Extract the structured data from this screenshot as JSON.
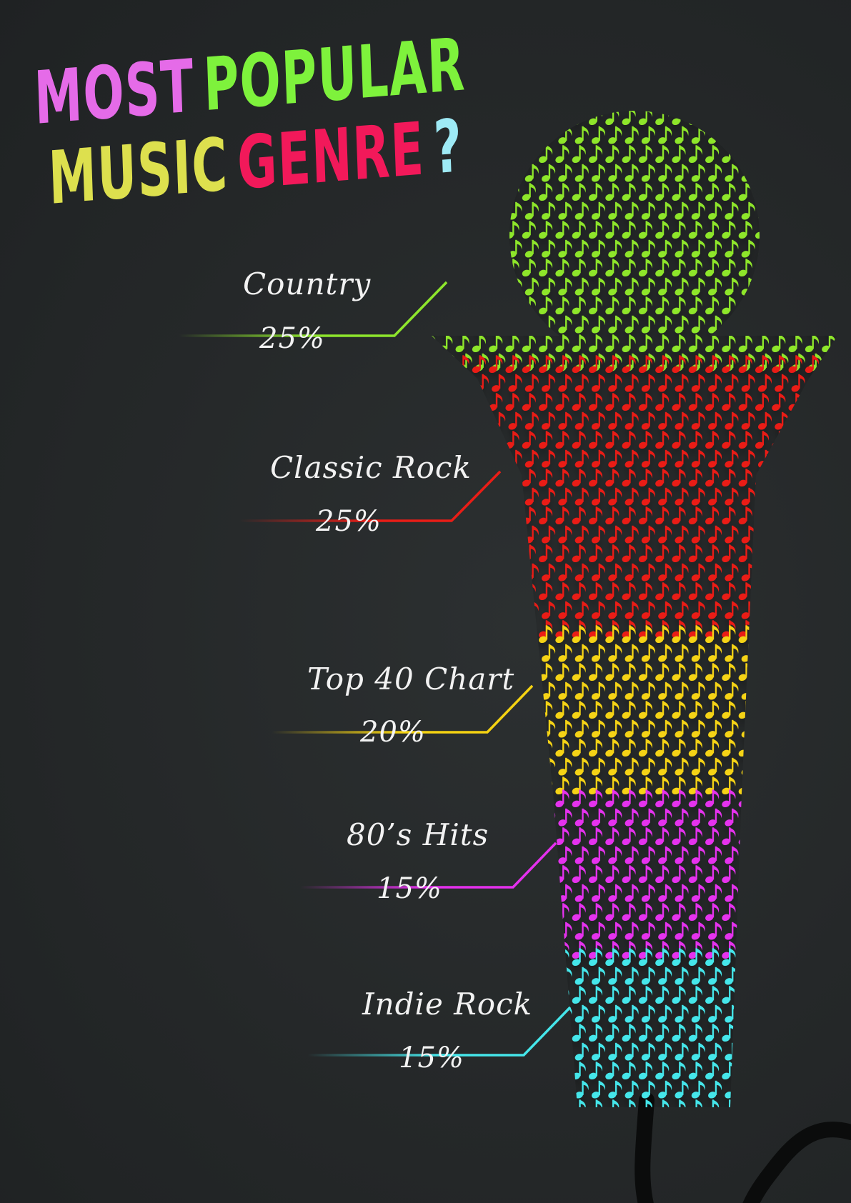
{
  "title": {
    "line1": [
      {
        "text": "MOST",
        "color": "#e56be8"
      },
      {
        "text": "POPULAR",
        "color": "#7ef23c"
      }
    ],
    "line2": [
      {
        "text": "MUSIC",
        "color": "#dde04e"
      },
      {
        "text": "GENRE",
        "color": "#f2195a"
      },
      {
        "text": "?",
        "color": "#9eeaf5"
      }
    ]
  },
  "icon": "music-note-icon",
  "chart_data": {
    "type": "pie",
    "categories": [
      "Country",
      "Classic Rock",
      "Top 40 Chart",
      "80’s Hits",
      "Indie Rock"
    ],
    "values": [
      25,
      25,
      20,
      15,
      15
    ],
    "value_labels": [
      "25%",
      "25%",
      "20%",
      "15%",
      "15%"
    ],
    "colors": [
      "#8ee62c",
      "#ea1d16",
      "#f5d312",
      "#e530ee",
      "#45e6ea"
    ]
  }
}
